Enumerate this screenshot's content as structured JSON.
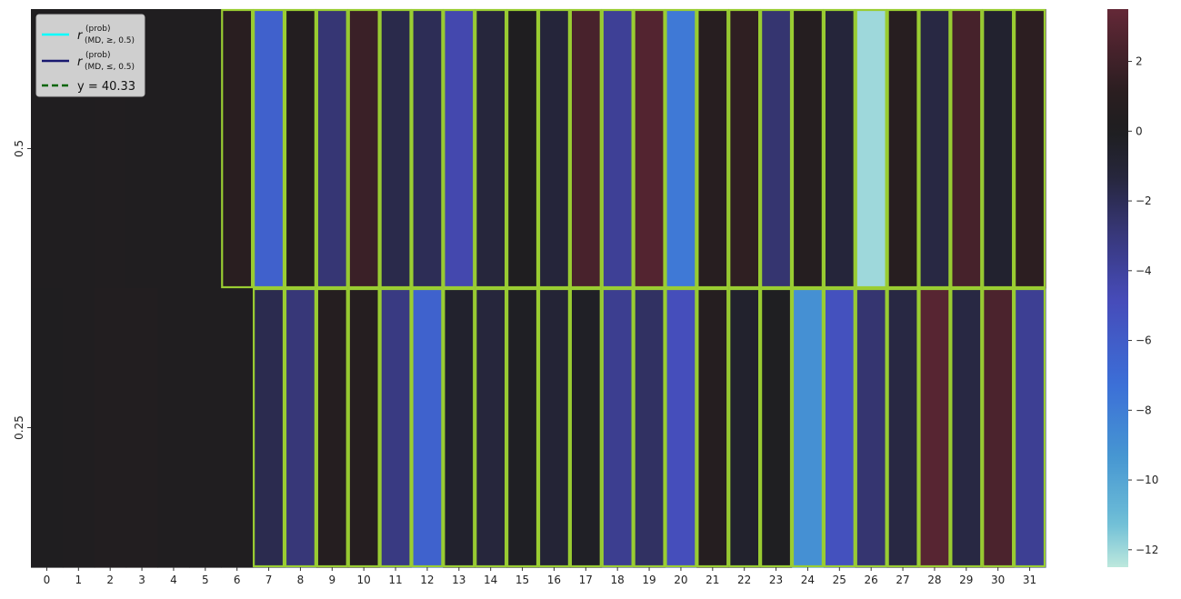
{
  "chart_data": {
    "type": "heatmap",
    "x_categories": [
      "0",
      "1",
      "2",
      "3",
      "4",
      "5",
      "6",
      "7",
      "8",
      "9",
      "10",
      "11",
      "12",
      "13",
      "14",
      "15",
      "16",
      "17",
      "18",
      "19",
      "20",
      "21",
      "22",
      "23",
      "24",
      "25",
      "26",
      "27",
      "28",
      "29",
      "30",
      "31"
    ],
    "y_categories": [
      "0.5",
      "0.25"
    ],
    "values": [
      [
        0.2,
        0.2,
        0.3,
        0.2,
        0.2,
        0.2,
        1.0,
        -6.3,
        0.5,
        -2.8,
        1.8,
        -1.7,
        -2.0,
        -4.5,
        -1.3,
        0.1,
        -1.2,
        2.4,
        -3.8,
        2.8,
        -7.8,
        0.8,
        1.3,
        -2.7,
        0.6,
        -1.2,
        -12.0,
        0.8,
        -1.5,
        2.3,
        -0.7,
        1.2
      ],
      [
        0.1,
        0.2,
        0.4,
        0.4,
        0.2,
        0.2,
        0.2,
        -1.8,
        -2.9,
        0.6,
        0.6,
        -3.2,
        -6.4,
        -0.6,
        -1.3,
        -0.2,
        -1.0,
        -0.3,
        -3.6,
        -2.3,
        -5.0,
        0.6,
        -0.6,
        -0.1,
        -9.0,
        -5.2,
        -2.7,
        -1.5,
        3.0,
        -1.5,
        2.5,
        -3.7
      ]
    ],
    "highlighted_cells": [
      [
        6,
        7,
        8,
        9,
        10,
        11,
        12,
        13,
        14,
        15,
        16,
        17,
        18,
        19,
        20,
        21,
        22,
        23,
        24,
        25,
        26,
        27,
        28,
        29,
        30,
        31
      ],
      [
        7,
        8,
        9,
        10,
        11,
        12,
        13,
        14,
        15,
        16,
        17,
        18,
        19,
        20,
        21,
        22,
        23,
        24,
        25,
        26,
        27,
        28,
        29,
        30,
        31
      ]
    ],
    "highlight_color": "#9acd32",
    "colorbar": {
      "min": -12.5,
      "max": 3.5,
      "ticks": [
        2,
        0,
        -2,
        -4,
        -6,
        -8,
        -10,
        -12
      ],
      "colormap": "icefire"
    },
    "legend": {
      "position": "top-left",
      "entries": [
        {
          "r": "r",
          "sup": "(prob)",
          "sub": "(MD, ≥, 0.5)",
          "color": "#00ffff",
          "style": "solid"
        },
        {
          "r": "r",
          "sup": "(prob)",
          "sub": "(MD, ≤, 0.5)",
          "color": "#191970",
          "style": "solid"
        },
        {
          "label": "y = 40.33",
          "color": "#006400",
          "style": "dashed"
        }
      ]
    }
  }
}
